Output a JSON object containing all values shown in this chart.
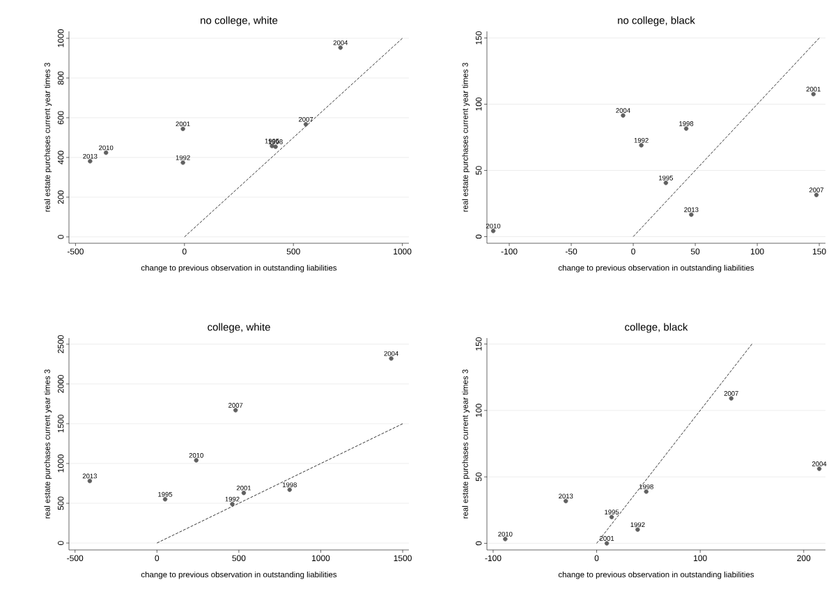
{
  "chart_data": [
    {
      "type": "scatter",
      "title": "no college, white",
      "xlabel": "change to previous observation in outstanding liabilities",
      "ylabel": "real estate purchases current year times 3",
      "xlim": [
        -530,
        1030
      ],
      "ylim": [
        -32,
        1035
      ],
      "xticks": [
        -500,
        0,
        500,
        1000
      ],
      "yticks": [
        0,
        200,
        400,
        600,
        800,
        1000
      ],
      "grid": "y",
      "marker": "circle",
      "series": [
        {
          "type": "scatter",
          "color": "#606060",
          "x": [
            716,
            557,
            -7,
            -7,
            -360,
            -433,
            402,
            418
          ],
          "values": [
            953,
            567,
            544,
            374,
            424,
            381,
            458,
            454
          ]
        },
        {
          "type": "line",
          "color": "#000000",
          "line_style": "dashed",
          "marker": "none",
          "x": [
            0,
            1000
          ],
          "values": [
            0,
            1000
          ]
        }
      ],
      "annotations": [
        {
          "text": "2004",
          "x": 716,
          "y": 953
        },
        {
          "text": "2007",
          "x": 557,
          "y": 567
        },
        {
          "text": "2001",
          "x": -7,
          "y": 544
        },
        {
          "text": "1992",
          "x": -7,
          "y": 374
        },
        {
          "text": "2010",
          "x": -360,
          "y": 424
        },
        {
          "text": "2013",
          "x": -433,
          "y": 381
        },
        {
          "text": "1995",
          "x": 402,
          "y": 458
        },
        {
          "text": "1998",
          "x": 418,
          "y": 454
        }
      ]
    },
    {
      "type": "scatter",
      "title": "no college, black",
      "xlabel": "change to previous observation in outstanding liabilities",
      "ylabel": "real estate purchases current year times 3",
      "xlim": [
        -118,
        155
      ],
      "ylim": [
        -5,
        155
      ],
      "xticks": [
        -100,
        -50,
        0,
        50,
        100,
        150
      ],
      "yticks": [
        0,
        50,
        100,
        150
      ],
      "grid": "y",
      "marker": "circle",
      "series": [
        {
          "type": "scatter",
          "color": "#606060",
          "x": [
            145.3,
            147.7,
            -8.2,
            42.7,
            6.5,
            26.3,
            46.8,
            -112.9
          ],
          "values": [
            107.6,
            31.5,
            91.5,
            81.6,
            69,
            40.6,
            16.6,
            4.3
          ]
        },
        {
          "type": "line",
          "color": "#000000",
          "line_style": "dashed",
          "marker": "none",
          "x": [
            0,
            150
          ],
          "values": [
            0,
            150
          ]
        }
      ],
      "annotations": [
        {
          "text": "2001",
          "x": 145.3,
          "y": 107.6
        },
        {
          "text": "2007",
          "x": 147.7,
          "y": 31.5
        },
        {
          "text": "2004",
          "x": -8.2,
          "y": 91.5
        },
        {
          "text": "1998",
          "x": 42.7,
          "y": 81.6
        },
        {
          "text": "1992",
          "x": 6.5,
          "y": 69
        },
        {
          "text": "1995",
          "x": 26.3,
          "y": 40.6
        },
        {
          "text": "2013",
          "x": 46.8,
          "y": 16.6
        },
        {
          "text": "2010",
          "x": -112.9,
          "y": 4.3
        }
      ]
    },
    {
      "type": "scatter",
      "title": "college, white",
      "xlabel": "change to previous observation in outstanding liabilities",
      "ylabel": "real estate purchases current year times 3",
      "xlim": [
        -537,
        1538
      ],
      "ylim": [
        -87,
        2577
      ],
      "xticks": [
        -500,
        0,
        500,
        1000,
        1500
      ],
      "yticks": [
        0,
        500,
        1000,
        1500,
        2000,
        2500
      ],
      "grid": "y",
      "marker": "circle",
      "series": [
        {
          "type": "scatter",
          "color": "#606060",
          "x": [
            1430,
            480,
            240,
            -410,
            50,
            530,
            460,
            810
          ],
          "values": [
            2320,
            1670,
            1040,
            780,
            550,
            630,
            490,
            670
          ]
        },
        {
          "type": "line",
          "color": "#000000",
          "line_style": "dashed",
          "marker": "none",
          "x": [
            0,
            1500
          ],
          "values": [
            0,
            1500
          ]
        }
      ],
      "annotations": [
        {
          "text": "2004",
          "x": 1430,
          "y": 2320
        },
        {
          "text": "2007",
          "x": 480,
          "y": 1670
        },
        {
          "text": "2010",
          "x": 240,
          "y": 1040
        },
        {
          "text": "2013",
          "x": -410,
          "y": 780
        },
        {
          "text": "1995",
          "x": 50,
          "y": 550
        },
        {
          "text": "2001",
          "x": 530,
          "y": 630
        },
        {
          "text": "1992",
          "x": 460,
          "y": 490
        },
        {
          "text": "1998",
          "x": 810,
          "y": 670
        }
      ]
    },
    {
      "type": "scatter",
      "title": "college, black",
      "xlabel": "change to previous observation in outstanding liabilities",
      "ylabel": "real estate purchases current year times 3",
      "xlim": [
        -106,
        221
      ],
      "ylim": [
        -5,
        154.5
      ],
      "xticks": [
        -100,
        0,
        100,
        200
      ],
      "yticks": [
        0,
        50,
        100,
        150
      ],
      "grid": "y",
      "marker": "circle",
      "series": [
        {
          "type": "scatter",
          "color": "#606060",
          "x": [
            130,
            215,
            47.9,
            -29.8,
            14.5,
            39.6,
            9.8,
            -88.3
          ],
          "values": [
            109.1,
            56.1,
            38.9,
            31.8,
            19.8,
            10.3,
            0,
            3.2
          ]
        },
        {
          "type": "line",
          "color": "#000000",
          "line_style": "dashed",
          "marker": "none",
          "x": [
            0,
            150
          ],
          "values": [
            0,
            150
          ]
        }
      ],
      "annotations": [
        {
          "text": "2007",
          "x": 130,
          "y": 109.1
        },
        {
          "text": "2004",
          "x": 215,
          "y": 56.1
        },
        {
          "text": "1998",
          "x": 47.9,
          "y": 38.9
        },
        {
          "text": "2013",
          "x": -29.8,
          "y": 31.8
        },
        {
          "text": "1995",
          "x": 14.5,
          "y": 19.8
        },
        {
          "text": "1992",
          "x": 39.6,
          "y": 10.3
        },
        {
          "text": "2001",
          "x": 9.8,
          "y": 0
        },
        {
          "text": "2010",
          "x": -88.3,
          "y": 3.2
        }
      ]
    }
  ]
}
